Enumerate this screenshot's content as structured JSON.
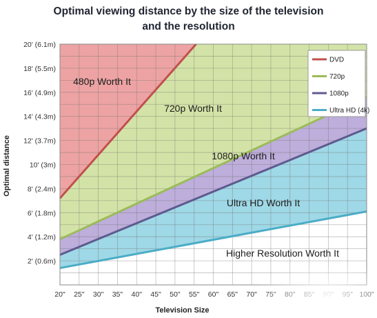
{
  "title_line1": "Optimal viewing distance by the size of the television",
  "title_line2": "and the resolution",
  "chart_data": {
    "type": "area",
    "title": "Optimal viewing distance by the size of the television and the resolution",
    "xlabel": "Television Size",
    "ylabel": "Optimal distance",
    "x_categories": [
      "20\"",
      "25\"",
      "30\"",
      "35\"",
      "40\"",
      "45\"",
      "50\"",
      "55\"",
      "60\"",
      "65\"",
      "70\"",
      "75\"",
      "80\"",
      "85\"",
      "90\"",
      "95\"",
      "100\""
    ],
    "x_values": [
      20,
      25,
      30,
      35,
      40,
      45,
      50,
      55,
      60,
      65,
      70,
      75,
      80,
      85,
      90,
      95,
      100
    ],
    "xlim": [
      20,
      100
    ],
    "ylim": [
      0,
      20
    ],
    "y_ticks": [
      2,
      4,
      6,
      8,
      10,
      12,
      14,
      16,
      18,
      20
    ],
    "y_tick_labels": [
      "2' (0.6m)",
      "4' (1.2m)",
      "6' (1.8m)",
      "8' (2.4m)",
      "10' (3m)",
      "12' (3.7m)",
      "14' (4.3m)",
      "16' (4.9m)",
      "18' (5.5m)",
      "20' (6.1m)"
    ],
    "grid": true,
    "legend_position": "top-right",
    "series": [
      {
        "name": "DVD",
        "color": "#c0504d",
        "x": [
          20,
          55.5
        ],
        "y": [
          7.2,
          20
        ]
      },
      {
        "name": "720p",
        "color": "#9bbb59",
        "x": [
          20,
          100
        ],
        "y": [
          3.8,
          15.6
        ]
      },
      {
        "name": "1080p",
        "color": "#5e5a8e",
        "x": [
          20,
          100
        ],
        "y": [
          2.5,
          13.0
        ]
      },
      {
        "name": "Ultra HD (4k)",
        "color": "#4bacc6",
        "x": [
          20,
          100
        ],
        "y": [
          1.4,
          6.1
        ]
      }
    ],
    "regions": [
      {
        "label": "480p Worth It",
        "color": "#eda3a3"
      },
      {
        "label": "720p Worth It",
        "color": "#d3e3a7"
      },
      {
        "label": "1080p Worth It",
        "color": "#bdaedb"
      },
      {
        "label": "Ultra HD Worth It",
        "color": "#9fd8e6"
      },
      {
        "label": "Higher Resolution Worth It",
        "color": "#ffffff"
      }
    ]
  }
}
